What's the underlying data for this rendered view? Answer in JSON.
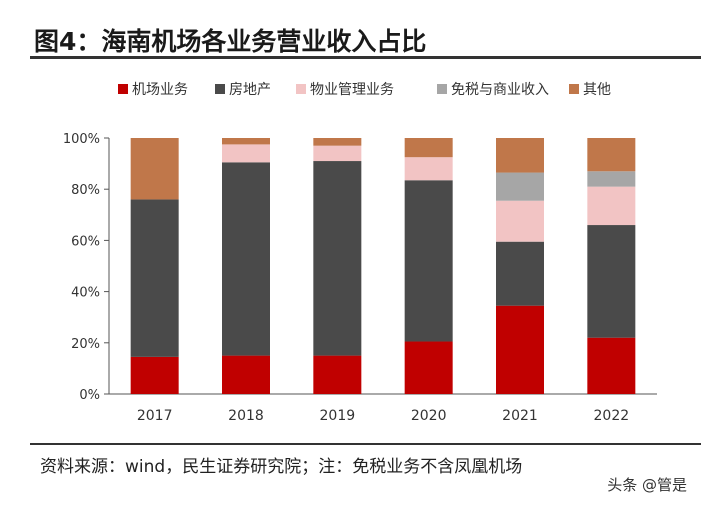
{
  "header": {
    "title": "图4：海南机场各业务营业收入占比"
  },
  "footer": {
    "source": "资料来源：wind，民生证券研究院；注：免税业务不含凤凰机场",
    "watermark": "头条 @管是"
  },
  "chart_data": {
    "type": "bar",
    "stacked": true,
    "categories": [
      "2017",
      "2018",
      "2019",
      "2020",
      "2021",
      "2022"
    ],
    "ylim": [
      0,
      100
    ],
    "yticks": [
      "0%",
      "20%",
      "40%",
      "60%",
      "80%",
      "100%"
    ],
    "grid": false,
    "legend_position": "top",
    "series": [
      {
        "name": "机场业务",
        "color": "#c00000",
        "values": [
          14.5,
          15,
          15,
          20.5,
          34.5,
          22
        ]
      },
      {
        "name": "房地产",
        "color": "#4a4a4a",
        "values": [
          61.5,
          75.5,
          76,
          63,
          25,
          44
        ]
      },
      {
        "name": "物业管理业务",
        "color": "#f2c4c4",
        "values": [
          0,
          7,
          6,
          9,
          16,
          15
        ]
      },
      {
        "name": "免税与商业收入",
        "color": "#a6a6a6",
        "values": [
          0,
          0,
          0,
          0,
          11,
          6
        ]
      },
      {
        "name": "其他",
        "color": "#c0774a",
        "values": [
          24,
          2.5,
          3,
          7.5,
          13.5,
          13
        ]
      }
    ]
  }
}
